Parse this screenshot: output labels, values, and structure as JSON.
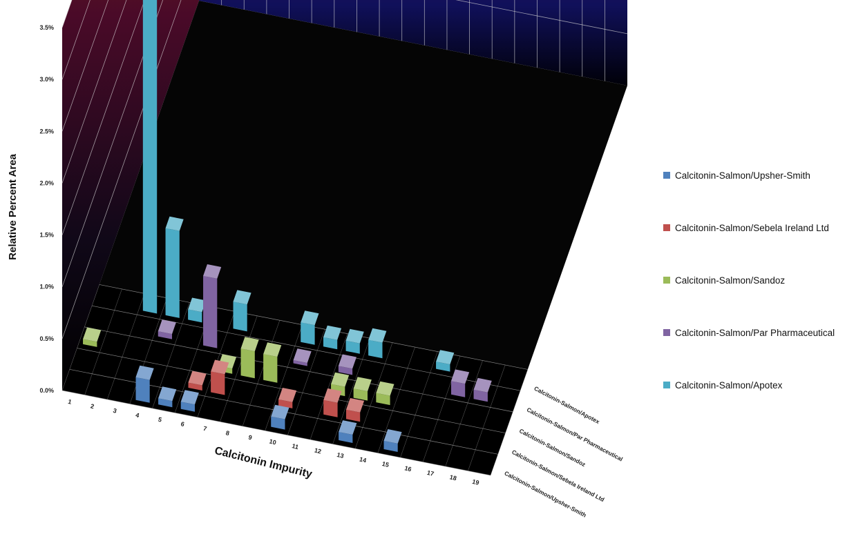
{
  "chart_data": {
    "type": "bar",
    "subtype": "3d-column",
    "title": "",
    "xlabel": "Calcitonin Impurity",
    "ylabel": "Relative Percent Area",
    "ylim": [
      0,
      3.5
    ],
    "y_ticks": [
      "0.0%",
      "0.5%",
      "1.0%",
      "1.5%",
      "2.0%",
      "2.5%",
      "3.0%",
      "3.5%"
    ],
    "categories": [
      "1",
      "2",
      "3",
      "4",
      "5",
      "6",
      "7",
      "8",
      "9",
      "10",
      "11",
      "12",
      "13",
      "14",
      "15",
      "16",
      "17",
      "18",
      "19"
    ],
    "legend_position": "right",
    "series": [
      {
        "name": "Calcitonin-Salmon/Upsher-Smith",
        "color": "#4f81bd",
        "values": [
          0,
          0,
          0,
          0.22,
          0.06,
          0.07,
          0,
          0,
          0,
          0.1,
          0,
          0,
          0.08,
          0,
          0.08,
          0,
          0,
          0,
          0
        ]
      },
      {
        "name": "Calcitonin-Salmon/Sebela Ireland Ltd",
        "color": "#c0504d",
        "values": [
          0,
          0,
          0,
          0,
          0,
          0.05,
          0.2,
          0,
          0,
          0.06,
          0,
          0.14,
          0.09,
          0,
          0,
          0,
          0,
          0,
          0
        ]
      },
      {
        "name": "Calcitonin-Salmon/Sandoz",
        "color": "#9bbb59",
        "values": [
          0.05,
          0,
          0,
          0,
          0,
          0,
          0.05,
          0.26,
          0.25,
          0,
          0,
          0.09,
          0.09,
          0.09,
          0,
          0,
          0,
          0,
          0
        ]
      },
      {
        "name": "Calcitonin-Salmon/Par Pharmaceutical",
        "color": "#8064a2",
        "values": [
          0,
          0,
          0,
          0.05,
          0,
          0.67,
          0,
          0,
          0,
          0.03,
          0,
          0.06,
          0,
          0,
          0,
          0,
          0.13,
          0.09,
          0
        ]
      },
      {
        "name": "Calcitonin-Salmon/Apotex",
        "color": "#4bacc6",
        "values": [
          0,
          0,
          3.26,
          0.84,
          0.1,
          0,
          0.26,
          0,
          0,
          0.19,
          0.09,
          0.1,
          0.15,
          0,
          0,
          0.07,
          0,
          0,
          0
        ]
      }
    ]
  }
}
